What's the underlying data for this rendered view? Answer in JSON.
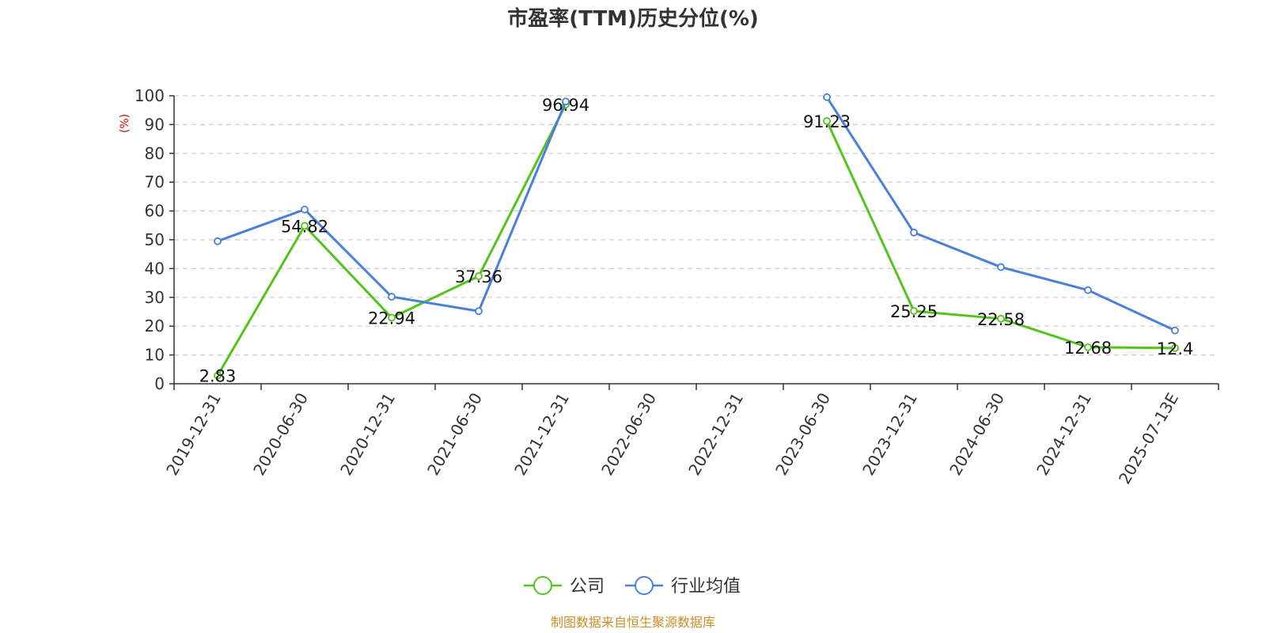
{
  "chart_data": {
    "type": "line",
    "title": "市盈率(TTM)历史分位(%)",
    "ylabel": "(%)",
    "ylim": [
      0,
      100
    ],
    "yticks": [
      0,
      10,
      20,
      30,
      40,
      50,
      60,
      70,
      80,
      90,
      100
    ],
    "grid": true,
    "categories": [
      "2019-12-31",
      "2020-06-30",
      "2020-12-31",
      "2021-06-30",
      "2021-12-31",
      "2022-06-30",
      "2022-12-31",
      "2023-06-30",
      "2023-12-31",
      "2024-06-30",
      "2024-12-31",
      "2025-07-13E"
    ],
    "series": [
      {
        "name": "公司",
        "color": "#52c41a",
        "values": [
          2.83,
          54.82,
          22.94,
          37.36,
          96.94,
          null,
          null,
          91.23,
          25.25,
          22.58,
          12.68,
          12.4
        ],
        "show_labels": true
      },
      {
        "name": "行业均值",
        "color": "#4a7fdc",
        "values": [
          49.5,
          60.5,
          30.2,
          25.2,
          98.0,
          null,
          null,
          99.5,
          52.5,
          40.5,
          32.5,
          18.5
        ],
        "show_labels": false
      }
    ],
    "legend_position": "bottom-center",
    "source": "制图数据来自恒生聚源数据库"
  }
}
